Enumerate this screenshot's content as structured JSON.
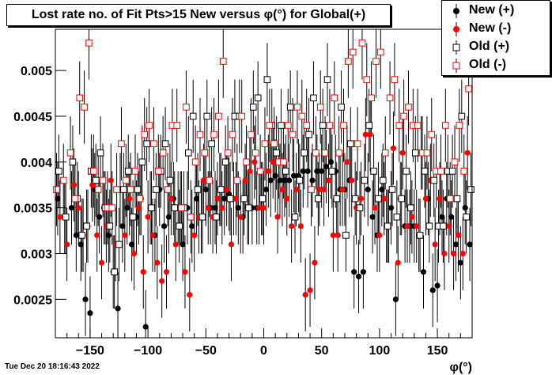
{
  "title": "Lost rate no. of Fit Pts>15 New versus φ(°) for Global(+)",
  "timestamp": "Tue Dec 20 18:16:43 2022",
  "chart_data": {
    "type": "scatter",
    "title": "Lost rate no. of Fit Pts>15 New versus φ(°) for Global(+)",
    "xlabel": "φ(°)",
    "ylabel": "",
    "xlim": [
      -180,
      180
    ],
    "ylim": [
      0.00208,
      0.00545
    ],
    "x_ticks": [
      -150,
      -100,
      -50,
      0,
      50,
      100,
      150
    ],
    "y_ticks": [
      0.0025,
      0.003,
      0.0035,
      0.004,
      0.0045,
      0.005
    ],
    "y_tick_labels": [
      "0.0025",
      "0.003",
      "0.0035",
      "0.004",
      "0.0045",
      "0.005"
    ],
    "x_tick_labels": [
      "−150",
      "−100",
      "−50",
      "0",
      "50",
      "100",
      "150"
    ],
    "grid": false,
    "legend_position": "top-right",
    "series": [
      {
        "name": "New (+)",
        "marker": "filled-circle",
        "color": "#000000",
        "x": [
          -178,
          -172,
          -166,
          -162,
          -158,
          -154,
          -150,
          -146,
          -142,
          -138,
          -134,
          -130,
          -126,
          -122,
          -118,
          -114,
          -110,
          -106,
          -102,
          -98,
          -94,
          -90,
          -86,
          -82,
          -78,
          -74,
          -70,
          -66,
          -62,
          -58,
          -54,
          -50,
          -46,
          -42,
          -38,
          -34,
          -30,
          -26,
          -22,
          -18,
          -14,
          -10,
          -6,
          -2,
          2,
          6,
          10,
          14,
          18,
          22,
          26,
          30,
          34,
          38,
          42,
          46,
          50,
          54,
          58,
          62,
          66,
          70,
          74,
          78,
          82,
          86,
          90,
          94,
          98,
          102,
          106,
          110,
          114,
          118,
          122,
          126,
          130,
          134,
          138,
          142,
          146,
          150,
          154,
          158,
          162,
          166,
          170,
          174,
          178
        ],
        "y": [
          0.0036,
          0.0034,
          0.0035,
          0.0032,
          0.0031,
          0.0025,
          0.00235,
          0.0037,
          0.0034,
          0.0035,
          0.0032,
          0.0028,
          0.0024,
          0.0033,
          0.0035,
          0.0031,
          0.0034,
          0.0036,
          0.0022,
          0.0035,
          0.0032,
          0.0037,
          0.0033,
          0.0034,
          0.0036,
          0.0035,
          0.0031,
          0.0035,
          0.0033,
          0.0036,
          0.0034,
          0.0037,
          0.0035,
          0.0035,
          0.0037,
          0.0036,
          0.00365,
          0.0036,
          0.0035,
          0.0034,
          0.0035,
          0.0035,
          0.0035,
          0.0036,
          0.0037,
          0.0038,
          0.00385,
          0.0038,
          0.0038,
          0.0038,
          0.00385,
          0.00385,
          0.0039,
          0.0039,
          0.0038,
          0.0039,
          0.0039,
          0.00395,
          0.004,
          0.0039,
          0.0037,
          0.0037,
          0.0038,
          0.0028,
          0.00275,
          0.0028,
          0.0037,
          0.0034,
          0.0032,
          0.0037,
          0.0033,
          0.0035,
          0.0025,
          0.0036,
          0.0033,
          0.0033,
          0.0033,
          0.0032,
          0.0028,
          0.0036,
          0.0026,
          0.00265,
          0.0034,
          0.0036,
          0.0034,
          0.0031,
          0.0029,
          0.0035,
          0.0031
        ],
        "err": [
          0.0004,
          0.0004,
          0.0004,
          0.0004,
          0.0004,
          0.0004,
          0.0004,
          0.0004,
          0.0004,
          0.0004,
          0.0004,
          0.0004,
          0.0004,
          0.0004,
          0.0004,
          0.0004,
          0.0004,
          0.0004,
          0.0004,
          0.0004,
          0.0004,
          0.0004,
          0.0004,
          0.0004,
          0.0004,
          0.0004,
          0.0004,
          0.0004,
          0.0004,
          0.0004,
          0.0004,
          0.0004,
          0.0004,
          0.0004,
          0.0004,
          0.0004,
          0.0004,
          0.0004,
          0.0004,
          0.0004,
          0.0004,
          0.0004,
          0.0004,
          0.0004,
          0.0004,
          0.0004,
          0.0004,
          0.0004,
          0.0004,
          0.0004,
          0.0004,
          0.0004,
          0.0004,
          0.0004,
          0.0004,
          0.0004,
          0.0004,
          0.0004,
          0.0004,
          0.0004,
          0.0004,
          0.0004,
          0.0004,
          0.0004,
          0.0004,
          0.0004,
          0.0004,
          0.0004,
          0.0004,
          0.0004,
          0.0004,
          0.0004,
          0.0004,
          0.0004,
          0.0004,
          0.0004,
          0.0004,
          0.0004,
          0.0004,
          0.0004,
          0.0004,
          0.0004,
          0.0004,
          0.0004,
          0.0004,
          0.0004,
          0.0004,
          0.0004,
          0.0004
        ]
      },
      {
        "name": "New (-)",
        "marker": "filled-circle",
        "color": "#ff0000",
        "x": [
          -176,
          -170,
          -164,
          -160,
          -156,
          -152,
          -148,
          -144,
          -140,
          -136,
          -132,
          -128,
          -124,
          -120,
          -116,
          -112,
          -108,
          -104,
          -100,
          -96,
          -92,
          -88,
          -84,
          -80,
          -76,
          -72,
          -68,
          -64,
          -60,
          -56,
          -52,
          -48,
          -44,
          -40,
          -36,
          -32,
          -28,
          -24,
          -20,
          -16,
          -12,
          -8,
          -4,
          0,
          4,
          8,
          12,
          16,
          20,
          24,
          28,
          32,
          36,
          40,
          44,
          48,
          52,
          56,
          60,
          64,
          68,
          72,
          76,
          80,
          84,
          88,
          92,
          96,
          100,
          104,
          108,
          112,
          116,
          120,
          124,
          128,
          132,
          136,
          140,
          144,
          148,
          152,
          156,
          160,
          164,
          168,
          172,
          176
        ],
        "y": [
          0.0034,
          0.0031,
          0.00375,
          0.0035,
          0.0032,
          0.0033,
          0.00375,
          0.0032,
          0.0029,
          0.0033,
          0.0038,
          0.0031,
          0.0037,
          0.0032,
          0.0036,
          0.003,
          0.0035,
          0.0028,
          0.0034,
          0.0032,
          0.0029,
          0.0027,
          0.0028,
          0.0036,
          0.0031,
          0.0035,
          0.0028,
          0.00255,
          0.0032,
          0.0034,
          0.0038,
          0.0035,
          0.0034,
          0.0036,
          0.0035,
          0.0037,
          0.0031,
          0.0036,
          0.0034,
          0.0038,
          0.0039,
          0.004,
          0.0035,
          0.0035,
          0.0039,
          0.004,
          0.0034,
          0.0037,
          0.0036,
          0.0033,
          0.0037,
          0.0033,
          0.00255,
          0.0026,
          0.0029,
          0.0037,
          0.0037,
          0.0038,
          0.0032,
          0.0032,
          0.0037,
          0.004,
          0.0038,
          0.0035,
          0.0036,
          0.0043,
          0.0043,
          0.0035,
          0.0032,
          0.0036,
          0.0033,
          0.00415,
          0.0029,
          0.0041,
          0.0033,
          0.0034,
          0.0033,
          0.0041,
          0.0036,
          0.0038,
          0.0031,
          0.0036,
          0.003,
          0.0033,
          0.003,
          0.0032,
          0.003,
          0.0041
        ],
        "err": [
          0.0004,
          0.0004,
          0.0004,
          0.0004,
          0.0004,
          0.0004,
          0.0004,
          0.0004,
          0.0004,
          0.0004,
          0.0004,
          0.0004,
          0.0004,
          0.0004,
          0.0004,
          0.0004,
          0.0004,
          0.0004,
          0.0004,
          0.0004,
          0.0004,
          0.0004,
          0.0004,
          0.0004,
          0.0004,
          0.0004,
          0.0004,
          0.0004,
          0.0004,
          0.0004,
          0.0004,
          0.0004,
          0.0004,
          0.0004,
          0.0004,
          0.0004,
          0.0004,
          0.0004,
          0.0004,
          0.0004,
          0.0004,
          0.0004,
          0.0004,
          0.0004,
          0.0004,
          0.0004,
          0.0004,
          0.0004,
          0.0004,
          0.0004,
          0.0004,
          0.0004,
          0.0004,
          0.0004,
          0.0004,
          0.0004,
          0.0004,
          0.0004,
          0.0004,
          0.0004,
          0.0004,
          0.0004,
          0.0004,
          0.0004,
          0.0004,
          0.0004,
          0.0004,
          0.0004,
          0.0004,
          0.0004,
          0.0004,
          0.0004,
          0.0004,
          0.0004,
          0.0004,
          0.0004,
          0.0004,
          0.0004,
          0.0004,
          0.0004,
          0.0004,
          0.0004,
          0.0004,
          0.0004,
          0.0004,
          0.0004,
          0.0004,
          0.0004
        ]
      },
      {
        "name": "Old (+)",
        "marker": "open-square",
        "color": "#000000",
        "x": [
          -177,
          -171,
          -165,
          -161,
          -157,
          -153,
          -149,
          -145,
          -141,
          -137,
          -133,
          -129,
          -125,
          -121,
          -117,
          -113,
          -109,
          -105,
          -101,
          -97,
          -93,
          -89,
          -85,
          -81,
          -77,
          -73,
          -69,
          -65,
          -61,
          -57,
          -53,
          -49,
          -45,
          -41,
          -37,
          -33,
          -29,
          -25,
          -21,
          -17,
          -13,
          -9,
          -5,
          -1,
          3,
          7,
          11,
          15,
          19,
          23,
          27,
          31,
          35,
          39,
          43,
          47,
          51,
          55,
          59,
          63,
          67,
          71,
          75,
          79,
          83,
          87,
          91,
          95,
          99,
          103,
          107,
          111,
          115,
          119,
          123,
          127,
          131,
          135,
          139,
          143,
          147,
          151,
          155,
          159,
          163,
          167,
          171,
          175,
          179
        ],
        "y": [
          0.0039,
          0.0034,
          0.004,
          0.0036,
          0.0032,
          0.0033,
          0.0039,
          0.0038,
          0.0041,
          0.0035,
          0.0033,
          0.0028,
          0.0031,
          0.0037,
          0.0039,
          0.0034,
          0.0037,
          0.004,
          0.0042,
          0.0035,
          0.0037,
          0.0039,
          0.0042,
          0.0038,
          0.0035,
          0.0033,
          0.0035,
          0.0041,
          0.0045,
          0.0037,
          0.0034,
          0.0045,
          0.0042,
          0.0034,
          0.0037,
          0.004,
          0.0036,
          0.0045,
          0.0045,
          0.0036,
          0.0035,
          0.0046,
          0.0047,
          0.0036,
          0.0049,
          0.0044,
          0.0041,
          0.0044,
          0.0039,
          0.0046,
          0.0034,
          0.0038,
          0.0041,
          0.0043,
          0.0047,
          0.0036,
          0.0044,
          0.0049,
          0.0039,
          0.0036,
          0.0046,
          0.0032,
          0.0042,
          0.0036,
          0.0035,
          0.0038,
          0.0044,
          0.0039,
          0.0036,
          0.0038,
          0.0033,
          0.0037,
          0.0034,
          0.0036,
          0.0039,
          0.0035,
          0.0041,
          0.0032,
          0.0039,
          0.0033,
          0.0038,
          0.0033,
          0.0033,
          0.0039,
          0.0039,
          0.0036,
          0.0045,
          0.0034,
          0.0037
        ],
        "err": [
          0.0004,
          0.0004,
          0.0004,
          0.0004,
          0.0004,
          0.0004,
          0.0004,
          0.0004,
          0.0004,
          0.0004,
          0.0004,
          0.0004,
          0.0004,
          0.0004,
          0.0004,
          0.0004,
          0.0004,
          0.0004,
          0.0004,
          0.0004,
          0.0004,
          0.0004,
          0.0004,
          0.0004,
          0.0004,
          0.0004,
          0.0004,
          0.0004,
          0.0004,
          0.0004,
          0.0004,
          0.0004,
          0.0004,
          0.0004,
          0.0004,
          0.0004,
          0.0004,
          0.0004,
          0.0004,
          0.0004,
          0.0004,
          0.0004,
          0.0004,
          0.0004,
          0.0004,
          0.0004,
          0.0004,
          0.0004,
          0.0004,
          0.0004,
          0.0004,
          0.0004,
          0.0004,
          0.0004,
          0.0004,
          0.0004,
          0.0004,
          0.0004,
          0.0004,
          0.0004,
          0.0004,
          0.0004,
          0.0004,
          0.0004,
          0.0004,
          0.0004,
          0.0004,
          0.0004,
          0.0004,
          0.0004,
          0.0004,
          0.0004,
          0.0004,
          0.0004,
          0.0004,
          0.0004,
          0.0004,
          0.0004,
          0.0004,
          0.0004,
          0.0004,
          0.0004,
          0.0004,
          0.0004,
          0.0004,
          0.0004,
          0.0004,
          0.0004,
          0.0004
        ]
      },
      {
        "name": "Old (-)",
        "marker": "open-square",
        "color": "#ff0000",
        "x": [
          -179,
          -173,
          -167,
          -163,
          -159,
          -155,
          -151,
          -147,
          -143,
          -139,
          -135,
          -131,
          -127,
          -123,
          -119,
          -115,
          -111,
          -107,
          -103,
          -99,
          -95,
          -91,
          -87,
          -83,
          -79,
          -75,
          -71,
          -67,
          -63,
          -59,
          -55,
          -51,
          -47,
          -43,
          -39,
          -35,
          -31,
          -27,
          -23,
          -19,
          -15,
          -11,
          -7,
          -3,
          1,
          5,
          9,
          13,
          17,
          21,
          25,
          29,
          33,
          37,
          41,
          45,
          49,
          53,
          57,
          61,
          65,
          69,
          73,
          77,
          81,
          85,
          89,
          93,
          97,
          101,
          105,
          109,
          113,
          117,
          121,
          125,
          129,
          133,
          137,
          141,
          145,
          149,
          153,
          157,
          161,
          165,
          169,
          173,
          177
        ],
        "y": [
          0.0037,
          0.0038,
          0.0041,
          0.0036,
          0.0047,
          0.0046,
          0.0053,
          0.0039,
          0.0037,
          0.0038,
          0.0035,
          0.0035,
          0.0037,
          0.0042,
          0.0038,
          0.0037,
          0.0039,
          0.0036,
          0.0043,
          0.0044,
          0.0042,
          0.0039,
          0.0041,
          0.0037,
          0.0044,
          0.0044,
          0.0035,
          0.0046,
          0.0034,
          0.004,
          0.0043,
          0.0041,
          0.0038,
          0.0043,
          0.0045,
          0.0051,
          0.0041,
          0.0043,
          0.0038,
          0.0045,
          0.004,
          0.0043,
          0.0041,
          0.0039,
          0.0042,
          0.0044,
          0.0042,
          0.004,
          0.004,
          0.0044,
          0.0043,
          0.0046,
          0.0045,
          0.0044,
          0.0037,
          0.0041,
          0.0046,
          0.0041,
          0.0044,
          0.0047,
          0.0041,
          0.0044,
          0.0051,
          0.0052,
          0.0042,
          0.0053,
          0.0049,
          0.0047,
          0.0051,
          0.0052,
          0.0041,
          0.0047,
          0.0049,
          0.0044,
          0.0045,
          0.0046,
          0.0044,
          0.0044,
          0.0041,
          0.0041,
          0.0043,
          0.0039,
          0.0039,
          0.0044,
          0.0036,
          0.004,
          0.0044,
          0.0039,
          0.0048
        ],
        "err": [
          0.0004,
          0.0004,
          0.0004,
          0.0004,
          0.0004,
          0.0004,
          0.0004,
          0.0004,
          0.0004,
          0.0004,
          0.0004,
          0.0004,
          0.0004,
          0.0004,
          0.0004,
          0.0004,
          0.0004,
          0.0004,
          0.0004,
          0.0004,
          0.0004,
          0.0004,
          0.0004,
          0.0004,
          0.0004,
          0.0004,
          0.0004,
          0.0004,
          0.0004,
          0.0004,
          0.0004,
          0.0004,
          0.0004,
          0.0004,
          0.0004,
          0.0004,
          0.0004,
          0.0004,
          0.0004,
          0.0004,
          0.0004,
          0.0004,
          0.0004,
          0.0004,
          0.0004,
          0.0004,
          0.0004,
          0.0004,
          0.0004,
          0.0004,
          0.0004,
          0.0004,
          0.0004,
          0.0004,
          0.0004,
          0.0004,
          0.0004,
          0.0004,
          0.0004,
          0.0004,
          0.0004,
          0.0004,
          0.0004,
          0.0004,
          0.0004,
          0.0004,
          0.0004,
          0.0004,
          0.0004,
          0.0004,
          0.0004,
          0.0004,
          0.0004,
          0.0004,
          0.0004,
          0.0004,
          0.0004,
          0.0004,
          0.0004,
          0.0004,
          0.0004,
          0.0004,
          0.0004,
          0.0004,
          0.0004,
          0.0004,
          0.0004,
          0.0004,
          0.0004
        ]
      }
    ]
  }
}
